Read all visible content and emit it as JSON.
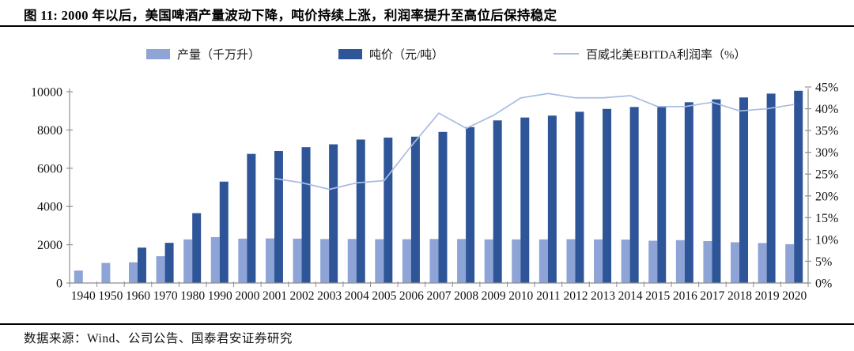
{
  "title": "图 11:  2000 年以后，美国啤酒产量波动下降，吨价持续上涨，利润率提升至高位后保持稳定",
  "footer": {
    "source": "数据来源：Wind、公司公告、国泰君安证券研究"
  },
  "colors": {
    "production_bar": "#8EA3D6",
    "price_bar": "#2E5597",
    "ebitda_line": "#A9BCE3",
    "axis": "#8F8F8F",
    "tick_text": "#111111"
  },
  "chart_data": {
    "type": "combo",
    "title": "",
    "grid": false,
    "legend_position": "top",
    "categories": [
      "1940",
      "1950",
      "1960",
      "1970",
      "1980",
      "1990",
      "2000",
      "2001",
      "2002",
      "2003",
      "2004",
      "2005",
      "2006",
      "2007",
      "2008",
      "2009",
      "2010",
      "2011",
      "2012",
      "2013",
      "2014",
      "2015",
      "2016",
      "2017",
      "2018",
      "2019",
      "2020"
    ],
    "series": [
      {
        "name": "产量（千万升）",
        "type": "bar",
        "axis": "left",
        "values": [
          650,
          1050,
          1080,
          1400,
          2280,
          2400,
          2320,
          2330,
          2320,
          2300,
          2300,
          2290,
          2290,
          2300,
          2300,
          2280,
          2280,
          2280,
          2290,
          2280,
          2270,
          2210,
          2240,
          2190,
          2130,
          2090,
          2030
        ]
      },
      {
        "name": "吨价（元/吨）",
        "type": "bar",
        "axis": "left",
        "values": [
          null,
          null,
          1850,
          2100,
          3650,
          5300,
          6750,
          6900,
          7100,
          7250,
          7500,
          7600,
          7650,
          7900,
          8150,
          8500,
          8650,
          8750,
          8950,
          9100,
          9200,
          9250,
          9450,
          9600,
          9700,
          9900,
          10050
        ]
      },
      {
        "name": "百威北美EBITDA利润率（%）",
        "type": "line",
        "axis": "right",
        "values": [
          null,
          null,
          null,
          null,
          null,
          null,
          null,
          24,
          23,
          21.5,
          23,
          23.5,
          31.5,
          39,
          35.5,
          38.5,
          42.5,
          43.5,
          42.5,
          42.5,
          43,
          40.5,
          40.5,
          41.5,
          39.5,
          40,
          41
        ]
      }
    ],
    "left_axis": {
      "min": 0,
      "max": 10000,
      "step": 2000,
      "tick_labels": [
        "0",
        "2000",
        "4000",
        "6000",
        "8000",
        "10000"
      ]
    },
    "right_axis": {
      "min": 0,
      "max": 45,
      "step": 5,
      "tick_labels": [
        "0%",
        "5%",
        "10%",
        "15%",
        "20%",
        "25%",
        "30%",
        "35%",
        "40%",
        "45%"
      ]
    }
  }
}
